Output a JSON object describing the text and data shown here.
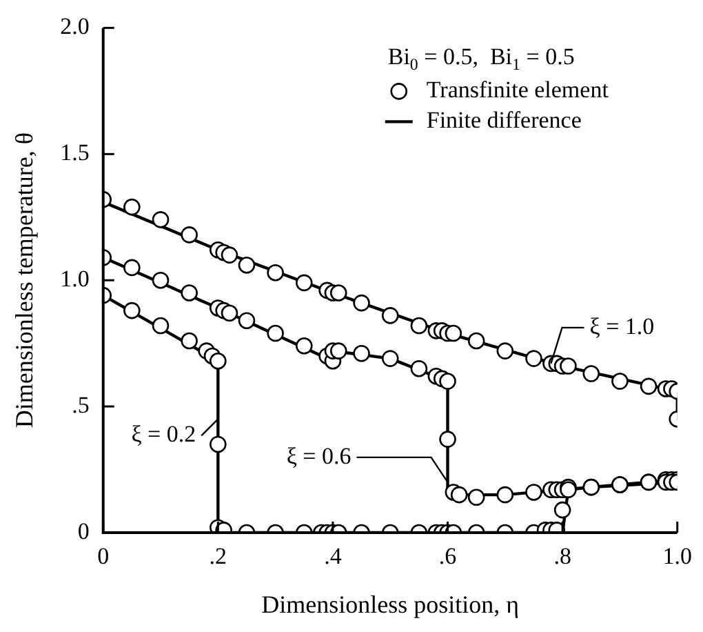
{
  "chart_data": {
    "type": "line",
    "xlabel": "Dimensionless position, η",
    "ylabel": "Dimensionless temperature, θ",
    "xlim": [
      0,
      1
    ],
    "ylim": [
      0,
      2
    ],
    "xticks": [
      0,
      {
        "value": 0.2,
        "label": ".2"
      },
      {
        "value": 0.4,
        "label": ".4"
      },
      {
        "value": 0.6,
        "label": ".6"
      },
      {
        "value": 0.8,
        "label": ".8"
      },
      {
        "value": 1,
        "label": "1.0"
      }
    ],
    "yticks": [
      0,
      {
        "value": 0.5,
        "label": ".5"
      },
      {
        "value": 1,
        "label": "1.0"
      },
      {
        "value": 1.5,
        "label": "1.5"
      },
      {
        "value": 2,
        "label": "2.0"
      }
    ],
    "grid": false,
    "legend": "top right",
    "legend_title": "Bi$_{0}$ = 0.5,  Bi$_{1}$ = 0.5",
    "series": [
      {
        "name": "Transfinite element",
        "type": "scatter",
        "marker": "circle",
        "color": "#000000",
        "x": [
          0,
          0.05,
          0.1,
          0.15,
          0.2,
          0.21,
          0.22,
          0.25,
          0.3,
          0.35,
          0.39,
          0.4,
          0.41,
          0.45,
          0.5,
          0.55,
          0.58,
          0.59,
          0.6,
          0.61,
          0.65,
          0.7,
          0.75,
          0.78,
          0.79,
          0.8,
          0.81,
          0.85,
          0.9,
          0.95,
          0.98,
          0.99,
          1,
          1,
          0,
          0.05,
          0.1,
          0.15,
          0.2,
          0.21,
          0.22,
          0.25,
          0.3,
          0.35,
          0.39,
          0.4,
          0.4,
          0.41,
          0.45,
          0.5,
          0.55,
          0.58,
          0.59,
          0.6,
          0.6,
          0.61,
          0.62,
          0.65,
          0.7,
          0.75,
          0.78,
          0.79,
          0.8,
          0.81,
          0.85,
          0.9,
          0.95,
          0.98,
          0.99,
          1,
          0,
          0.05,
          0.1,
          0.15,
          0.18,
          0.19,
          0.2,
          0.2,
          0.2,
          0.21,
          0.25,
          0.3,
          0.35,
          0.38,
          0.39,
          0.4,
          0.41,
          0.45,
          0.5,
          0.55,
          0.58,
          0.59,
          0.6,
          0.61,
          0.65,
          0.7,
          0.75,
          0.77,
          0.78,
          0.79,
          0.8,
          0.81,
          0.85,
          0.9,
          0.95,
          0.98,
          0.99,
          1
        ],
        "values": [
          1.32,
          1.29,
          1.24,
          1.18,
          1.12,
          1.11,
          1.1,
          1.06,
          1.03,
          0.99,
          0.96,
          0.95,
          0.95,
          0.91,
          0.86,
          0.82,
          0.8,
          0.8,
          0.79,
          0.79,
          0.76,
          0.72,
          0.69,
          0.67,
          0.67,
          0.66,
          0.66,
          0.63,
          0.6,
          0.58,
          0.57,
          0.57,
          0.56,
          0.45,
          1.09,
          1.05,
          1,
          0.95,
          0.89,
          0.88,
          0.87,
          0.84,
          0.79,
          0.74,
          0.7,
          0.68,
          0.72,
          0.72,
          0.71,
          0.69,
          0.65,
          0.62,
          0.61,
          0.6,
          0.37,
          0.16,
          0.15,
          0.14,
          0.15,
          0.16,
          0.17,
          0.17,
          0.17,
          0.18,
          0.18,
          0.19,
          0.2,
          0.21,
          0.21,
          0.21,
          0.94,
          0.88,
          0.82,
          0.76,
          0.72,
          0.7,
          0.68,
          0.35,
          0.02,
          0.01,
          0,
          0,
          0,
          0,
          0,
          0,
          0,
          0,
          0,
          0,
          0,
          0,
          0,
          0,
          0,
          0,
          0,
          0.01,
          0.01,
          0.01,
          0.09,
          0.17,
          0.18,
          0.19,
          0.2,
          0.2,
          0.2,
          0.2
        ]
      },
      {
        "name": "Finite difference",
        "type": "line",
        "marker": "none",
        "line_style": "solid",
        "color": "#000000",
        "x": [
          0,
          0.2,
          0.4,
          0.6,
          0.8,
          1,
          1,
          null,
          0,
          0.2,
          0.4,
          0.4,
          0.5,
          0.6,
          0.6,
          0.61,
          0.7,
          0.8,
          1,
          null,
          0,
          0.2,
          0.2,
          0.8,
          0.81,
          0.85,
          1
        ],
        "values": [
          1.31,
          1.12,
          0.95,
          0.79,
          0.66,
          0.56,
          0.45,
          null,
          1.09,
          0.89,
          0.68,
          0.72,
          0.69,
          0.6,
          0.16,
          0.15,
          0.15,
          0.17,
          0.21,
          null,
          0.94,
          0.68,
          0,
          0,
          0.17,
          0.18,
          0.2
        ]
      }
    ],
    "annotations": [
      {
        "text": "ξ = 1.0",
        "x": 0.78,
        "y": 0.67
      },
      {
        "text": "ξ = 0.2",
        "x": 0.2,
        "y": 0.45
      },
      {
        "text": "ξ = 0.6",
        "x": 0.6,
        "y": 0.2
      }
    ]
  }
}
